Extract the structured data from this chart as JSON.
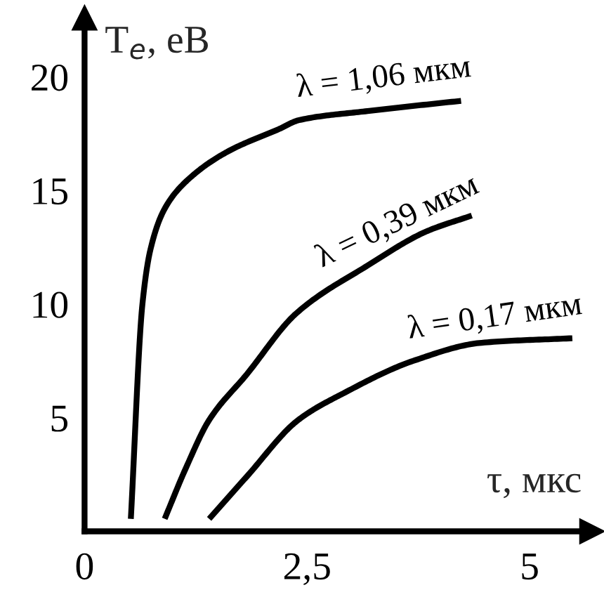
{
  "chart_data": {
    "type": "line",
    "xlabel": "τ, мкс",
    "ylabel": "T$_{e}$, eB",
    "xlim": [
      0,
      5.7
    ],
    "ylim": [
      0,
      22.6
    ],
    "xticks": [
      {
        "value": 0,
        "label": "0"
      },
      {
        "value": 2.5,
        "label": "2,5"
      },
      5
    ],
    "yticks": [
      5,
      10,
      15,
      20
    ],
    "grid": false,
    "legend": false,
    "marker": "none",
    "line_style": "solid",
    "series": [
      {
        "name": "λ = 1,06 мкм",
        "color": "#000000",
        "x": [
          0.52,
          0.65,
          0.74,
          0.9,
          1.14,
          1.6,
          2.18,
          2.41,
          3.18,
          4.23
        ],
        "values": [
          0.55,
          10,
          12.4,
          14.2,
          15.4,
          16.7,
          17.7,
          18.1,
          18.5,
          18.95
        ]
      },
      {
        "name": "λ = 0,39 мкм",
        "color": "#000000",
        "x": [
          0.9,
          1.14,
          1.4,
          1.82,
          2.38,
          3.18,
          3.84,
          4.35
        ],
        "values": [
          0.55,
          2.8,
          4.9,
          6.9,
          9.6,
          11.7,
          13.2,
          13.9
        ]
      },
      {
        "name": "λ = 0,17 мкм",
        "color": "#000000",
        "x": [
          1.4,
          1.82,
          2.4,
          2.92,
          3.69,
          4.46,
          5.48
        ],
        "values": [
          0.55,
          2.4,
          4.9,
          6.1,
          7.5,
          8.3,
          8.5
        ]
      }
    ]
  }
}
